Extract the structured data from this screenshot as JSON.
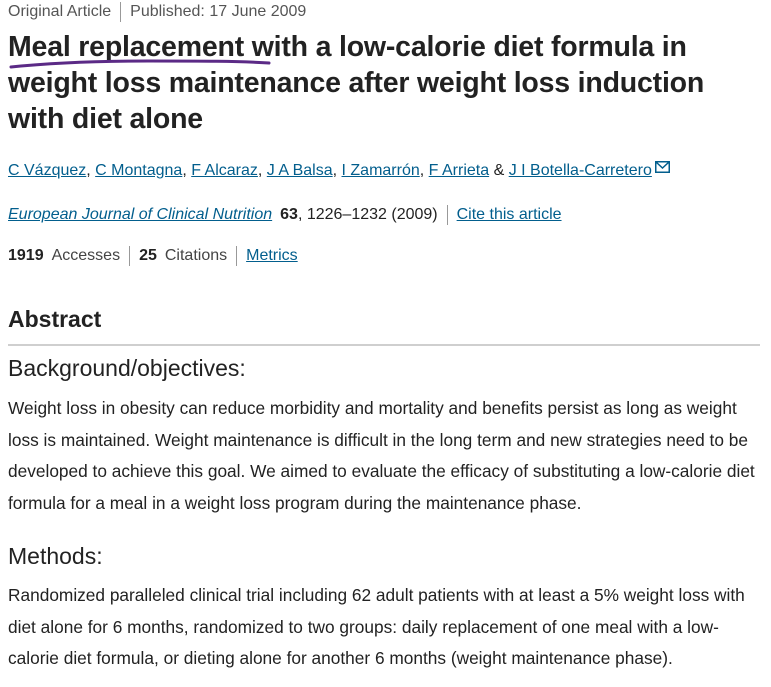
{
  "article": {
    "type": "Original Article",
    "published": "Published: 17 June 2009",
    "title": "Meal replacement with a low-calorie diet formula in weight loss maintenance after weight loss induction with diet alone",
    "authors": [
      "C Vázquez",
      "C Montagna",
      "F Alcaraz",
      "J A Balsa",
      "I Zamarrón",
      "F Arrieta",
      "J I Botella-Carretero"
    ],
    "author_separator": ", ",
    "author_conjunction": " & ",
    "journal": {
      "name": "European Journal of Clinical Nutrition",
      "volume": "63",
      "pages_year": ", 1226–1232 (2009)",
      "cite_label": "Cite this article"
    },
    "stats": {
      "accesses_count": "1919",
      "accesses_label": "Accesses",
      "citations_count": "25",
      "citations_label": "Citations",
      "metrics_label": "Metrics"
    }
  },
  "abstract": {
    "heading": "Abstract",
    "sections": [
      {
        "heading": "Background/objectives:",
        "text": "Weight loss in obesity can reduce morbidity and mortality and benefits persist as long as weight loss is maintained. Weight maintenance is difficult in the long term and new strategies need to be developed to achieve this goal. We aimed to evaluate the efficacy of substituting a low-calorie diet formula for a meal in a weight loss program during the maintenance phase."
      },
      {
        "heading": "Methods:",
        "text": "Randomized paralleled clinical trial including 62 adult patients with at least a 5% weight loss with diet alone for 6 months, randomized to two groups: daily replacement of one meal with a low-calorie diet formula, or dieting alone for another 6 months (weight maintenance phase)."
      }
    ]
  },
  "colors": {
    "link": "#025e8d",
    "text": "#222222",
    "handwritten_underline": "#5b2a86"
  },
  "icons": {
    "author_contact": "envelope-icon"
  }
}
